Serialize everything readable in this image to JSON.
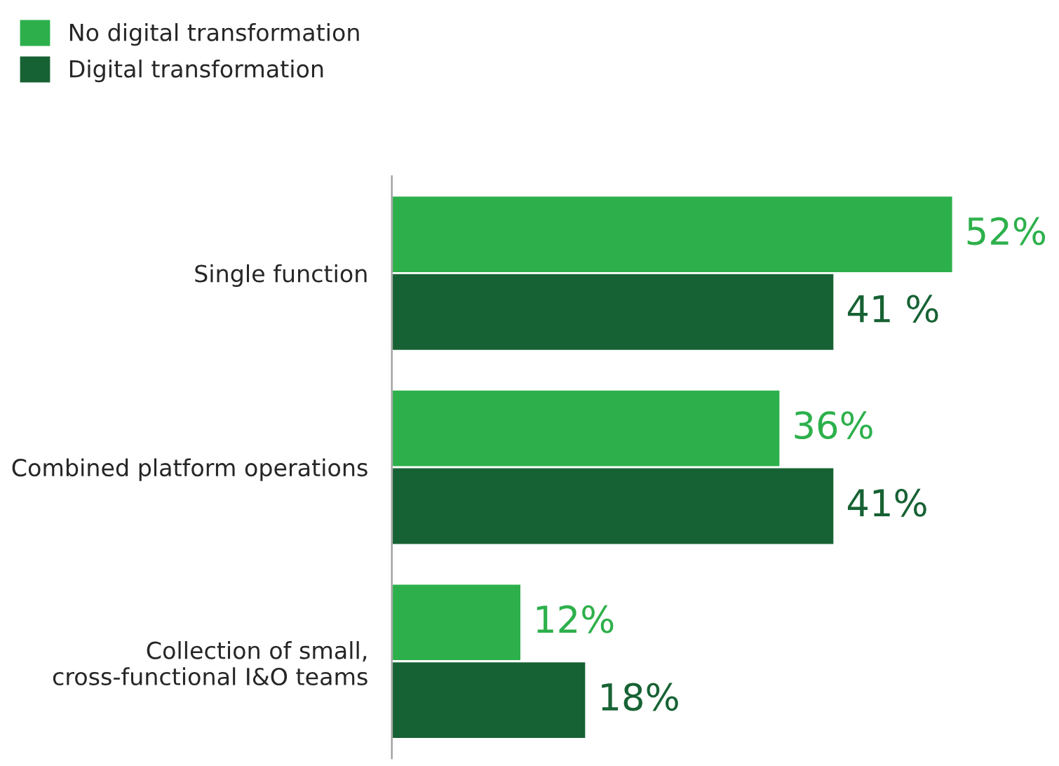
{
  "chart_data": {
    "type": "bar",
    "orientation": "horizontal",
    "categories": [
      "Single function",
      "Combined platform operations",
      "Collection of small,\ncross-functional I&O teams"
    ],
    "series": [
      {
        "name": "No digital transformation",
        "color": "#2db04b",
        "values": [
          52,
          36,
          12
        ],
        "value_labels": [
          "52%",
          "36%",
          "12%"
        ]
      },
      {
        "name": "Digital transformation",
        "color": "#176234",
        "values": [
          41,
          41,
          18
        ],
        "value_labels": [
          "41 %",
          "41%",
          "18%"
        ]
      }
    ],
    "legend": "top left",
    "grid": false,
    "tick_labels": "y"
  }
}
